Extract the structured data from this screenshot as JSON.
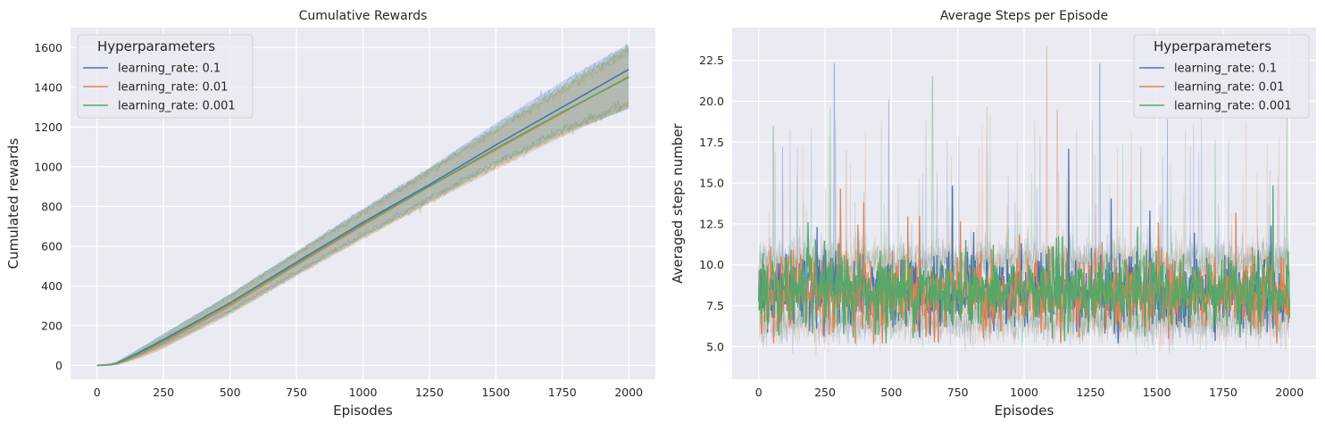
{
  "chart_data": [
    {
      "type": "line",
      "title": "Cumulative Rewards",
      "xlabel": "Episodes",
      "ylabel": "Cumulated rewards",
      "xlim": [
        -100,
        2100
      ],
      "ylim": [
        -70,
        1700
      ],
      "xticks": [
        0,
        250,
        500,
        750,
        1000,
        1250,
        1500,
        1750,
        2000
      ],
      "yticks": [
        0,
        200,
        400,
        600,
        800,
        1000,
        1200,
        1400,
        1600
      ],
      "grid": true,
      "legend": {
        "title": "Hyperparameters",
        "placement": "top-left"
      },
      "series": [
        {
          "name": "learning_rate: 0.1",
          "color": "#4c72b0",
          "x": [
            0,
            50,
            75,
            100,
            150,
            200,
            250,
            500,
            750,
            1000,
            1250,
            1500,
            1750,
            2000
          ],
          "y": [
            0,
            5,
            12,
            28,
            60,
            95,
            130,
            315,
            520,
            720,
            910,
            1110,
            1300,
            1490
          ],
          "band_low": [
            0,
            2,
            6,
            18,
            42,
            72,
            100,
            270,
            462,
            650,
            830,
            1010,
            1170,
            1290
          ],
          "band_high": [
            0,
            8,
            18,
            38,
            78,
            118,
            160,
            360,
            575,
            790,
            995,
            1220,
            1430,
            1620
          ]
        },
        {
          "name": "learning_rate: 0.01",
          "color": "#dd8452",
          "x": [
            0,
            50,
            75,
            100,
            150,
            200,
            250,
            500,
            750,
            1000,
            1250,
            1500,
            1750,
            2000
          ],
          "y": [
            0,
            3,
            8,
            20,
            48,
            80,
            112,
            300,
            505,
            705,
            900,
            1085,
            1270,
            1455
          ],
          "band_low": [
            0,
            1,
            4,
            12,
            32,
            58,
            85,
            255,
            450,
            635,
            815,
            985,
            1150,
            1300
          ],
          "band_high": [
            0,
            6,
            14,
            30,
            66,
            104,
            142,
            348,
            562,
            775,
            985,
            1190,
            1395,
            1600
          ]
        },
        {
          "name": "learning_rate: 0.001",
          "color": "#55a868",
          "x": [
            0,
            50,
            75,
            100,
            150,
            200,
            250,
            500,
            750,
            1000,
            1250,
            1500,
            1750,
            2000
          ],
          "y": [
            0,
            4,
            10,
            24,
            54,
            88,
            122,
            310,
            512,
            712,
            902,
            1092,
            1275,
            1450
          ],
          "band_low": [
            0,
            2,
            5,
            15,
            37,
            65,
            92,
            262,
            455,
            642,
            820,
            998,
            1158,
            1295
          ],
          "band_high": [
            0,
            7,
            16,
            34,
            72,
            112,
            152,
            358,
            570,
            782,
            990,
            1200,
            1405,
            1610
          ]
        }
      ]
    },
    {
      "type": "line",
      "title": "Average Steps per Episode",
      "xlabel": "Episodes",
      "ylabel": "Averaged steps number",
      "xlim": [
        -100,
        2100
      ],
      "ylim": [
        3,
        24.5
      ],
      "xticks": [
        0,
        250,
        500,
        750,
        1000,
        1250,
        1500,
        1750,
        2000
      ],
      "yticks": [
        5.0,
        7.5,
        10.0,
        12.5,
        15.0,
        17.5,
        20.0,
        22.5
      ],
      "grid": true,
      "legend": {
        "title": "Hyperparameters",
        "placement": "top-right"
      },
      "series": [
        {
          "name": "learning_rate: 0.1",
          "color": "#4c72b0",
          "mean": 8.4,
          "spread": 1.1,
          "band_spread": 2.0
        },
        {
          "name": "learning_rate: 0.01",
          "color": "#dd8452",
          "mean": 8.3,
          "spread": 1.1,
          "band_spread": 2.0
        },
        {
          "name": "learning_rate: 0.001",
          "color": "#55a868",
          "mean": 8.4,
          "spread": 1.1,
          "band_spread": 2.0
        }
      ],
      "spikes": [
        {
          "series": 0,
          "x": 285,
          "y": 22.3
        },
        {
          "series": 0,
          "x": 490,
          "y": 20.1
        },
        {
          "series": 0,
          "x": 1285,
          "y": 22.3
        },
        {
          "series": 0,
          "x": 1540,
          "y": 18.9
        },
        {
          "series": 0,
          "x": 90,
          "y": 17.2
        },
        {
          "series": 1,
          "x": 1085,
          "y": 23.4
        },
        {
          "series": 1,
          "x": 860,
          "y": 19.7
        },
        {
          "series": 1,
          "x": 1125,
          "y": 19.5
        },
        {
          "series": 1,
          "x": 330,
          "y": 17.0
        },
        {
          "series": 2,
          "x": 55,
          "y": 18.5
        },
        {
          "series": 2,
          "x": 655,
          "y": 21.5
        },
        {
          "series": 2,
          "x": 1440,
          "y": 17.2
        },
        {
          "series": 2,
          "x": 1720,
          "y": 17.6
        },
        {
          "series": 2,
          "x": 1990,
          "y": 19.2
        },
        {
          "series": 2,
          "x": 270,
          "y": 19.6
        }
      ]
    }
  ]
}
